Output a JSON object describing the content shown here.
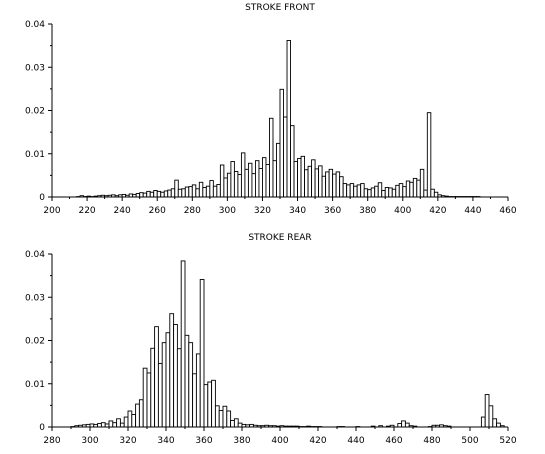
{
  "chart_data": [
    {
      "type": "bar",
      "title": "STROKE FRONT",
      "xlabel": "",
      "ylabel": "",
      "xlim": [
        200,
        460
      ],
      "ylim": [
        0,
        0.04
      ],
      "grid": false,
      "x_ticks": [
        "200",
        "220",
        "240",
        "260",
        "280",
        "300",
        "320",
        "340",
        "360",
        "380",
        "400",
        "420",
        "440",
        "460"
      ],
      "y_ticks": [
        "0",
        "0.01",
        "0.02",
        "0.03",
        "0.04"
      ],
      "bin_width": 2,
      "x": [
        214,
        216,
        218,
        220,
        222,
        224,
        226,
        228,
        230,
        232,
        234,
        236,
        238,
        240,
        242,
        244,
        246,
        248,
        250,
        252,
        254,
        256,
        258,
        260,
        262,
        264,
        266,
        268,
        270,
        272,
        274,
        276,
        278,
        280,
        282,
        284,
        286,
        288,
        290,
        292,
        294,
        296,
        298,
        300,
        302,
        304,
        306,
        308,
        310,
        312,
        314,
        316,
        318,
        320,
        322,
        324,
        326,
        328,
        330,
        332,
        334,
        336,
        338,
        340,
        342,
        344,
        346,
        348,
        350,
        352,
        354,
        356,
        358,
        360,
        362,
        364,
        366,
        368,
        370,
        372,
        374,
        376,
        378,
        380,
        382,
        384,
        386,
        388,
        390,
        392,
        394,
        396,
        398,
        400,
        402,
        404,
        406,
        408,
        410,
        412,
        414,
        416,
        418,
        420,
        422,
        424,
        426,
        428,
        430,
        432,
        434,
        436,
        438,
        440,
        442
      ],
      "values": [
        0.0001,
        0.0003,
        0.0001,
        0.0002,
        0.0001,
        0.0002,
        0.0003,
        0.0004,
        0.0003,
        0.0004,
        0.0005,
        0.0003,
        0.0005,
        0.0006,
        0.0004,
        0.0007,
        0.0006,
        0.0008,
        0.001,
        0.0009,
        0.0013,
        0.0011,
        0.0015,
        0.0013,
        0.0011,
        0.0014,
        0.0016,
        0.0019,
        0.0039,
        0.0018,
        0.0019,
        0.0023,
        0.0024,
        0.0028,
        0.0019,
        0.0034,
        0.0022,
        0.0025,
        0.0038,
        0.0025,
        0.0029,
        0.0074,
        0.0044,
        0.0055,
        0.0082,
        0.0059,
        0.0052,
        0.0102,
        0.0064,
        0.0078,
        0.0054,
        0.0084,
        0.0066,
        0.0091,
        0.0075,
        0.0182,
        0.0084,
        0.0124,
        0.0249,
        0.0185,
        0.0362,
        0.0165,
        0.0082,
        0.0089,
        0.0094,
        0.0063,
        0.0071,
        0.0086,
        0.0065,
        0.0072,
        0.0048,
        0.0058,
        0.0064,
        0.0053,
        0.0058,
        0.0047,
        0.0031,
        0.0028,
        0.0031,
        0.0025,
        0.0028,
        0.0031,
        0.0019,
        0.0017,
        0.0021,
        0.0025,
        0.0033,
        0.0015,
        0.0022,
        0.0021,
        0.0018,
        0.0027,
        0.0031,
        0.0024,
        0.0037,
        0.0034,
        0.0043,
        0.0039,
        0.0064,
        0.0016,
        0.0195,
        0.0018,
        0.0011,
        0.0005,
        0.0003,
        0.0002,
        0.0001,
        0.0001,
        0.0001,
        0.0001,
        0.0001,
        0.0001,
        0.0001,
        0.0001,
        0.0001
      ]
    },
    {
      "type": "bar",
      "title": "STROKE REAR",
      "xlabel": "",
      "ylabel": "",
      "xlim": [
        280,
        520
      ],
      "ylim": [
        0,
        0.04
      ],
      "grid": false,
      "x_ticks": [
        "280",
        "300",
        "320",
        "340",
        "360",
        "380",
        "400",
        "420",
        "440",
        "460",
        "480",
        "500",
        "520"
      ],
      "y_ticks": [
        "0",
        "0.01",
        "0.02",
        "0.03",
        "0.04"
      ],
      "bin_width": 2,
      "x": [
        290,
        292,
        294,
        296,
        298,
        300,
        302,
        304,
        306,
        308,
        310,
        312,
        314,
        316,
        318,
        320,
        322,
        324,
        326,
        328,
        330,
        332,
        334,
        336,
        338,
        340,
        342,
        344,
        346,
        348,
        350,
        352,
        354,
        356,
        358,
        360,
        362,
        364,
        366,
        368,
        370,
        372,
        374,
        376,
        378,
        380,
        382,
        384,
        386,
        388,
        390,
        392,
        394,
        396,
        398,
        400,
        402,
        404,
        406,
        408,
        410,
        412,
        414,
        416,
        418,
        420,
        430,
        432,
        440,
        448,
        452,
        456,
        458,
        462,
        464,
        466,
        468,
        470,
        478,
        480,
        482,
        484,
        486,
        488,
        506,
        508,
        510,
        512,
        514,
        516
      ],
      "values": [
        0.0001,
        0.0003,
        0.0004,
        0.0005,
        0.0006,
        0.0007,
        0.0006,
        0.0008,
        0.001,
        0.0007,
        0.0014,
        0.001,
        0.0019,
        0.0009,
        0.0023,
        0.0037,
        0.0029,
        0.0053,
        0.0063,
        0.0136,
        0.0125,
        0.0182,
        0.0232,
        0.0147,
        0.0195,
        0.0218,
        0.0262,
        0.0237,
        0.0181,
        0.0384,
        0.0212,
        0.0195,
        0.0123,
        0.0169,
        0.0341,
        0.0098,
        0.0104,
        0.0108,
        0.0049,
        0.0038,
        0.0048,
        0.0037,
        0.0015,
        0.0019,
        0.0009,
        0.0006,
        0.0005,
        0.0006,
        0.0004,
        0.0003,
        0.0003,
        0.0004,
        0.0003,
        0.0003,
        0.0002,
        0.0003,
        0.0002,
        0.0002,
        0.0002,
        0.0002,
        0.0001,
        0.0001,
        0.0002,
        0.0001,
        0.0001,
        0.0001,
        0.0001,
        0.0001,
        0.0001,
        0.0002,
        0.0003,
        0.0002,
        0.0004,
        0.0008,
        0.0014,
        0.0009,
        0.0003,
        0.0002,
        0.0001,
        0.0004,
        0.0004,
        0.0005,
        0.0003,
        0.0002,
        0.0023,
        0.0075,
        0.0049,
        0.0019,
        0.0009,
        0.0003
      ]
    }
  ]
}
